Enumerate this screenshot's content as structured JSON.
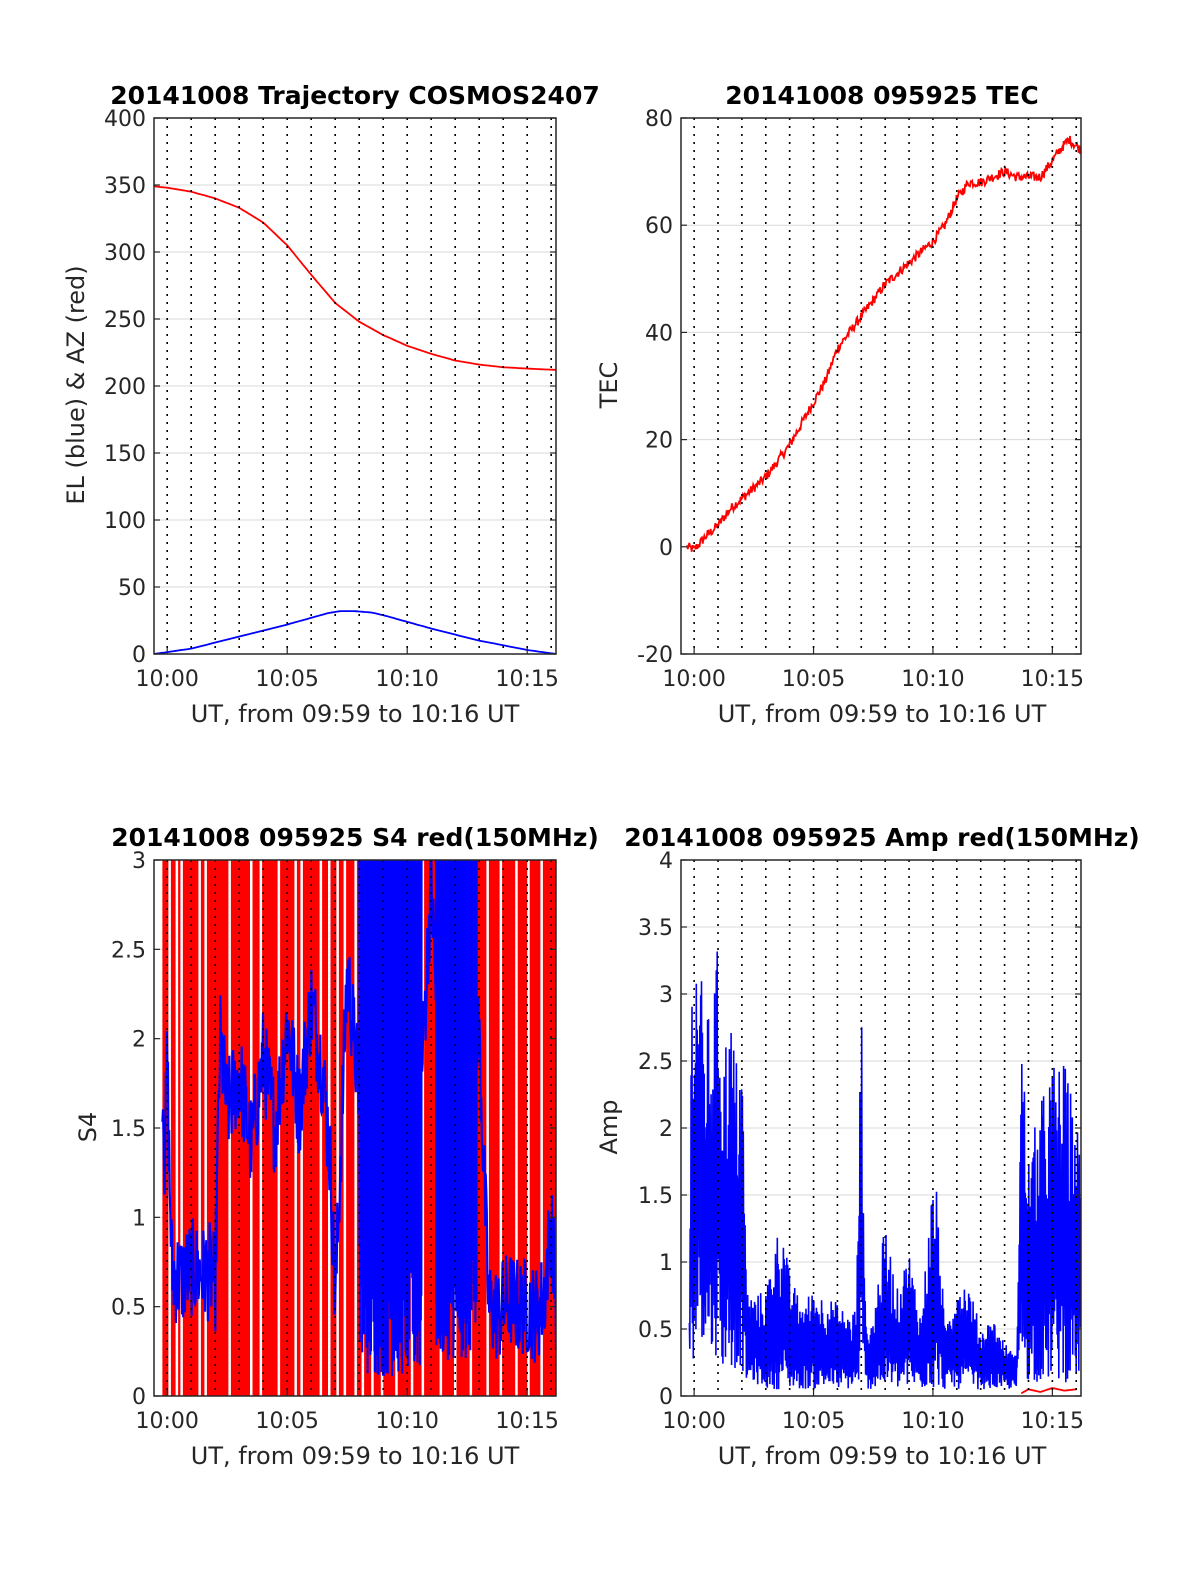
{
  "figure": {
    "background": "#ffffff",
    "axis_color": "#262626",
    "grid_color": "#d9d9d9"
  },
  "chart_data": [
    {
      "id": "trajectory",
      "type": "line",
      "title": "20141008 Trajectory COSMOS2407",
      "xlabel": "UT, from 09:59 to 10:16 UT",
      "ylabel": "EL (blue) & AZ (red)",
      "xlim": [
        -0.55,
        16.2
      ],
      "ylim": [
        0,
        400
      ],
      "yticks": [
        0,
        50,
        100,
        150,
        200,
        250,
        300,
        350,
        400
      ],
      "xticks": [
        {
          "value": 0,
          "label": "10:00"
        },
        {
          "value": 5,
          "label": "10:05"
        },
        {
          "value": 10,
          "label": "10:10"
        },
        {
          "value": 15,
          "label": "10:15"
        }
      ],
      "x_minute_lines": true,
      "grid": true,
      "series": [
        {
          "color": "#ff0000",
          "x": [
            -0.55,
            0,
            1,
            2,
            3,
            4,
            5,
            6,
            7,
            7.5,
            8,
            9,
            10,
            11,
            12,
            13,
            14,
            15,
            16.2
          ],
          "y": [
            349,
            348,
            345,
            340,
            333,
            322,
            305,
            283,
            262,
            255,
            248,
            238,
            230,
            224,
            219,
            216,
            214,
            213,
            212
          ]
        },
        {
          "color": "#0000ff",
          "x": [
            -0.55,
            1,
            2,
            3,
            4,
            5,
            6,
            6.7,
            7.2,
            7.8,
            8.5,
            9,
            10,
            11,
            12,
            13,
            14,
            15,
            16.2
          ],
          "y": [
            0,
            4,
            8.5,
            13,
            17.5,
            22,
            27,
            30.5,
            32,
            32,
            31,
            29,
            24,
            19,
            14.5,
            10,
            6.5,
            3,
            0
          ]
        }
      ]
    },
    {
      "id": "tec",
      "type": "line",
      "title": "20141008 095925 TEC",
      "xlabel": "UT, from 09:59 to 10:16 UT",
      "ylabel": "TEC",
      "xlim": [
        -0.55,
        16.2
      ],
      "ylim": [
        -20,
        80
      ],
      "yticks": [
        -20,
        0,
        20,
        40,
        60,
        80
      ],
      "xticks": [
        {
          "value": 0,
          "label": "10:00"
        },
        {
          "value": 5,
          "label": "10:05"
        },
        {
          "value": 10,
          "label": "10:10"
        },
        {
          "value": 15,
          "label": "10:15"
        }
      ],
      "x_minute_lines": true,
      "grid": true,
      "series": [
        {
          "color": "#ff0000",
          "x": [
            -0.3,
            0,
            0.5,
            1,
            1.5,
            2,
            3,
            4,
            5,
            5.5,
            6,
            7,
            7.5,
            8,
            8.5,
            9,
            9.5,
            10,
            10.5,
            11,
            11.5,
            12,
            12.5,
            13,
            13.5,
            14,
            14.5,
            15,
            15.3,
            15.7,
            16.2
          ],
          "y": [
            0,
            -0.5,
            2,
            4,
            7,
            9,
            13,
            19,
            27,
            31,
            37,
            43,
            46,
            49,
            51,
            53,
            55,
            57,
            60,
            65,
            68,
            68,
            69,
            70,
            69,
            69,
            69,
            72,
            74,
            76,
            74
          ]
        }
      ]
    },
    {
      "id": "s4",
      "type": "line",
      "title": "20141008 095925 S4 red(150MHz)",
      "xlabel": "UT, from 09:59 to 10:16 UT",
      "ylabel": "S4",
      "xlim": [
        -0.55,
        16.2
      ],
      "ylim": [
        0,
        3
      ],
      "yticks": [
        0,
        0.5,
        1,
        1.5,
        2,
        2.5,
        3
      ],
      "ytick_labels": [
        "0",
        "0.5",
        "1",
        "1.5",
        "2",
        "2.5",
        "3"
      ],
      "xticks": [
        {
          "value": 0,
          "label": "10:00"
        },
        {
          "value": 5,
          "label": "10:05"
        },
        {
          "value": 10,
          "label": "10:10"
        },
        {
          "value": 15,
          "label": "10:15"
        }
      ],
      "x_minute_lines": true,
      "grid": true,
      "series": [
        {
          "color": "#ff0000",
          "fill_range": [
            -0.2,
            16.2
          ],
          "gaps": [
            0.05,
            0.35,
            0.55,
            1.3,
            1.55,
            2.55,
            3.45,
            3.85,
            4.6,
            5.3,
            5.55,
            6.35,
            6.7,
            7.05,
            7.35,
            7.8,
            8.1,
            8.5,
            8.9,
            9.5,
            10.15,
            10.6,
            11.35,
            11.95,
            12.6,
            13.3,
            13.85,
            14.5,
            15.0,
            15.55
          ],
          "y": 3
        },
        {
          "color": "#0000ff",
          "x": [
            -0.2,
            -0.1,
            0.0,
            0.1,
            0.2,
            0.3,
            0.6,
            1.0,
            1.5,
            1.8,
            2.0,
            2.2,
            2.5,
            3.0,
            3.5,
            4.0,
            4.5,
            5.0,
            5.5,
            6.0,
            6.5,
            6.8,
            7.0,
            7.5,
            8.0,
            8.5,
            9.0,
            9.5,
            10.0,
            10.5,
            11.0,
            11.5,
            11.9,
            12.2,
            12.6,
            13.0,
            13.4,
            13.8,
            14.2,
            14.6,
            15.0,
            15.4,
            15.7,
            16.0,
            16.2
          ],
          "y": [
            1.8,
            1.3,
            1.9,
            1.2,
            0.7,
            0.68,
            0.65,
            0.72,
            0.68,
            0.7,
            0.62,
            2.0,
            1.6,
            1.8,
            1.4,
            1.9,
            1.5,
            2.1,
            1.6,
            2.2,
            1.8,
            1.3,
            0.5,
            2.4,
            1.7,
            2.3,
            2.0,
            2.8,
            2.2,
            1.5,
            2.9,
            1.2,
            1.6,
            1.0,
            2.4,
            2.0,
            0.5,
            0.45,
            0.55,
            0.5,
            0.5,
            0.45,
            0.55,
            1.0,
            0.5
          ],
          "bursts": [
            {
              "from": 8.0,
              "to": 10.6,
              "low": 0.1,
              "high": 3
            },
            {
              "from": 11.2,
              "to": 12.9,
              "low": 0.2,
              "high": 3
            }
          ]
        }
      ]
    },
    {
      "id": "amp",
      "type": "line",
      "title": "20141008 095925 Amp red(150MHz)",
      "xlabel": "UT, from 09:59 to 10:16 UT",
      "ylabel": "Amp",
      "xlim": [
        -0.55,
        16.2
      ],
      "ylim": [
        0,
        4
      ],
      "yticks": [
        0,
        0.5,
        1,
        1.5,
        2,
        2.5,
        3,
        3.5,
        4
      ],
      "ytick_labels": [
        "0",
        "0.5",
        "1",
        "1.5",
        "2",
        "2.5",
        "3",
        "3.5",
        "4"
      ],
      "xticks": [
        {
          "value": 0,
          "label": "10:00"
        },
        {
          "value": 5,
          "label": "10:05"
        },
        {
          "value": 10,
          "label": "10:10"
        },
        {
          "value": 15,
          "label": "10:15"
        }
      ],
      "x_minute_lines": true,
      "grid": true,
      "series": [
        {
          "color": "#ff0000",
          "x": [
            13.7,
            14.0,
            14.5,
            15.0,
            15.5,
            16.0
          ],
          "y": [
            0.02,
            0.05,
            0.03,
            0.06,
            0.04,
            0.05
          ]
        },
        {
          "color": "#0000ff",
          "envelope_x": [
            -0.2,
            -0.1,
            0.2,
            0.4,
            0.7,
            1.0,
            1.2,
            1.5,
            1.8,
            2.0,
            2.2,
            2.5,
            3.0,
            3.4,
            3.7,
            4.0,
            4.5,
            5.0,
            5.5,
            6.0,
            6.5,
            6.8,
            7.0,
            7.2,
            7.5,
            8.0,
            8.5,
            9.0,
            9.5,
            10.0,
            10.2,
            10.5,
            11.0,
            11.5,
            12.0,
            12.5,
            13.0,
            13.5,
            13.7,
            14.0,
            14.5,
            15.0,
            15.5,
            16.0,
            16.2
          ],
          "envelope_high": [
            0.8,
            3.3,
            3.5,
            2.8,
            2.9,
            3.4,
            2.6,
            2.9,
            2.5,
            2.7,
            0.8,
            0.75,
            0.8,
            1.2,
            1.3,
            0.9,
            0.7,
            0.8,
            0.75,
            0.7,
            0.6,
            0.7,
            3.05,
            0.5,
            0.6,
            1.3,
            0.8,
            1.1,
            0.6,
            1.65,
            1.5,
            0.5,
            0.9,
            0.85,
            0.5,
            0.6,
            0.4,
            0.3,
            2.8,
            1.8,
            2.2,
            2.5,
            2.5,
            2.1,
            1.8
          ],
          "envelope_low": [
            0.0,
            0.2,
            0.5,
            0.4,
            0.3,
            0.3,
            0.2,
            0.2,
            0.2,
            0.2,
            0.1,
            0.1,
            0.05,
            0.05,
            0.05,
            0.05,
            0.05,
            0.05,
            0.05,
            0.05,
            0.05,
            0.05,
            0.1,
            0.05,
            0.05,
            0.05,
            0.05,
            0.05,
            0.05,
            0.05,
            0.05,
            0.05,
            0.05,
            0.05,
            0.05,
            0.05,
            0.05,
            0.05,
            0.2,
            0.1,
            0.1,
            0.1,
            0.1,
            0.1,
            0.1
          ]
        }
      ]
    }
  ]
}
